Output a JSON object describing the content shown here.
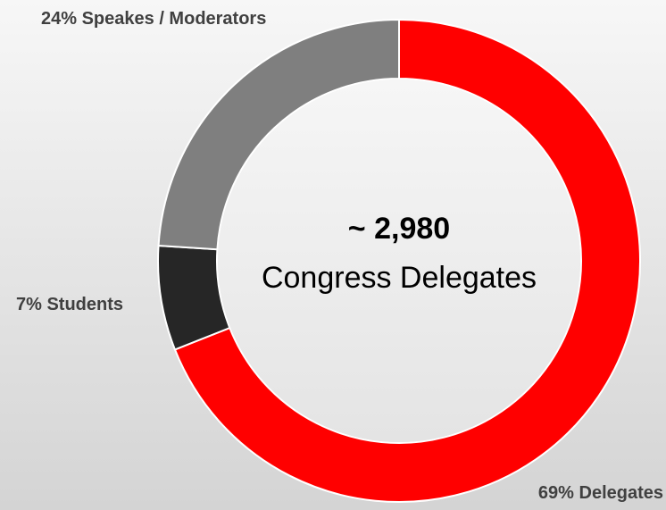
{
  "chart_data": {
    "type": "donut",
    "categories": [
      "Delegates",
      "Students",
      "Speakes / Moderators"
    ],
    "values": [
      69,
      7,
      24
    ],
    "value_labels": [
      "69%",
      "7%",
      "24%"
    ],
    "colors": [
      "#ff0000",
      "#262626",
      "#7f7f7f"
    ],
    "center_text": {
      "title": "~ 2,980",
      "subtitle": "Congress Delegates"
    }
  }
}
